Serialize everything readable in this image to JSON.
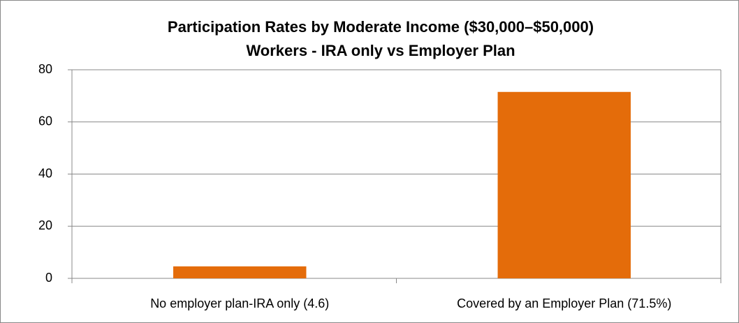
{
  "chart_data": {
    "type": "bar",
    "title": [
      "Participation Rates by Moderate Income ($30,000–$50,000)",
      "Workers -  IRA only vs Employer Plan"
    ],
    "categories": [
      "No employer plan-IRA only (4.6)",
      "Covered by an Employer Plan (71.5%)"
    ],
    "values": [
      4.6,
      71.5
    ],
    "color": "#e46c0a",
    "ylim": [
      0,
      80
    ],
    "yticks": [
      0,
      20,
      40,
      60,
      80
    ],
    "grid": true
  }
}
